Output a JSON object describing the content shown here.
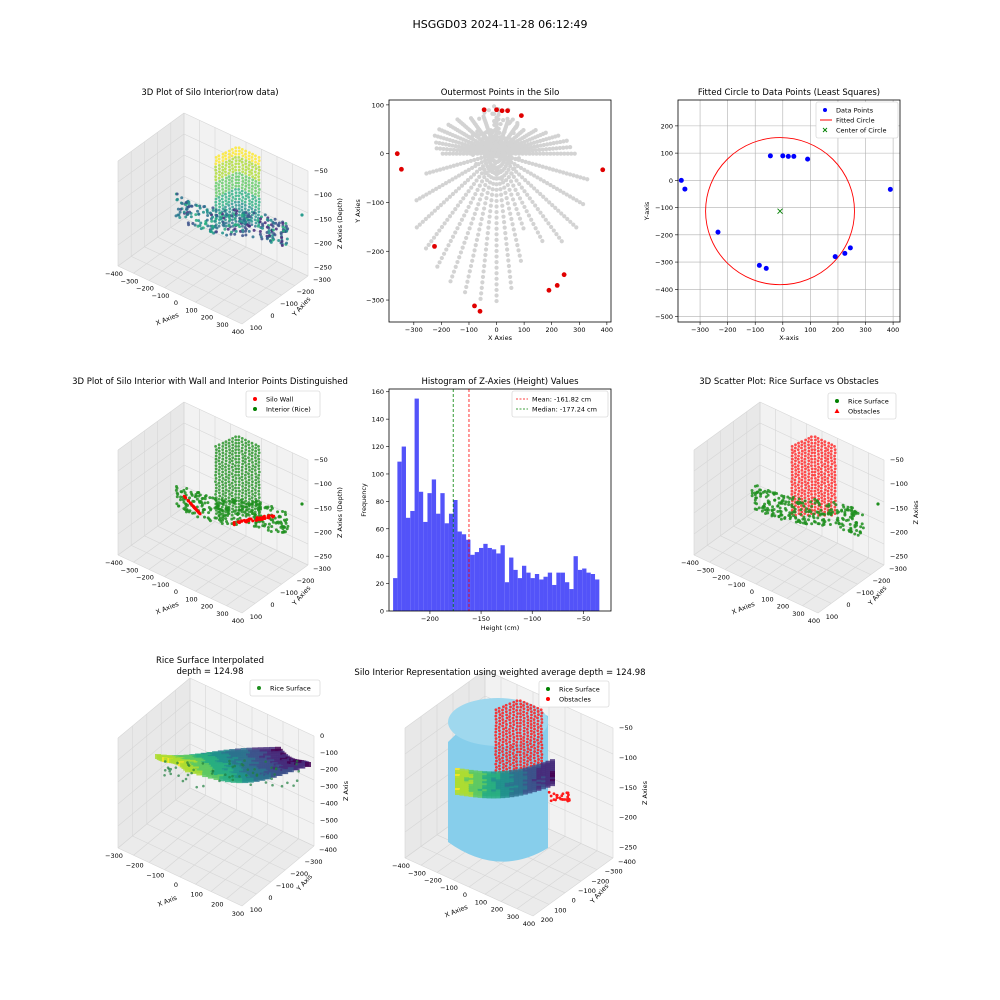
{
  "suptitle": "HSGGD03 2024-11-28 06:12:49",
  "chart_data": [
    {
      "id": "p1",
      "type": "scatter3d",
      "title": "3D Plot of Silo Interior(row data)",
      "xlabel": "X Axies",
      "ylabel": "Y Axies",
      "zlabel": "Z Axies (Depth)",
      "xticks": [
        "−400",
        "−300",
        "−200",
        "−100",
        "0",
        "100",
        "200",
        "300",
        "400"
      ],
      "yticks": [
        "−300",
        "−200",
        "−100",
        "0",
        "100"
      ],
      "zticks": [
        "−50",
        "−100",
        "−150",
        "−200",
        "−250"
      ],
      "colormap": "viridis",
      "legend": []
    },
    {
      "id": "p2",
      "type": "scatter",
      "title": "Outermost Points in the Silo",
      "xlabel": "X Axies",
      "ylabel": "Y Axies",
      "xticks": [
        -300,
        -200,
        -100,
        0,
        100,
        200,
        300,
        400
      ],
      "yticks": [
        100,
        0,
        -100,
        -200,
        -300
      ],
      "xlim": [
        -390,
        415
      ],
      "ylim": [
        -345,
        110
      ],
      "outermost_points": [
        {
          "x": -360,
          "y": 0
        },
        {
          "x": -345,
          "y": -32
        },
        {
          "x": -225,
          "y": -190
        },
        {
          "x": -80,
          "y": -312
        },
        {
          "x": -60,
          "y": -323
        },
        {
          "x": -45,
          "y": 90
        },
        {
          "x": 0,
          "y": 90
        },
        {
          "x": 20,
          "y": 88
        },
        {
          "x": 40,
          "y": 88
        },
        {
          "x": 90,
          "y": 78
        },
        {
          "x": 190,
          "y": -280
        },
        {
          "x": 220,
          "y": -270
        },
        {
          "x": 245,
          "y": -248
        },
        {
          "x": 385,
          "y": -33
        }
      ],
      "colors": {
        "background_points": "#d3d3d3",
        "outermost": "#e00000"
      }
    },
    {
      "id": "p3",
      "type": "scatter+circle",
      "title": "Fitted Circle to Data Points (Least Squares)",
      "xlabel": "X-axis",
      "ylabel": "Y-axis",
      "xticks": [
        -300,
        -200,
        -100,
        0,
        100,
        200,
        300,
        400
      ],
      "yticks": [
        200,
        100,
        0,
        -100,
        -200,
        -300,
        -400,
        -500
      ],
      "xlim": [
        -380,
        425
      ],
      "ylim": [
        -520,
        295
      ],
      "grid": true,
      "legend": [
        "Data Points",
        "Fitted Circle",
        "Center of Circle"
      ],
      "legend_position": "top-right",
      "data_points": [
        {
          "x": -368,
          "y": 0
        },
        {
          "x": -355,
          "y": -32
        },
        {
          "x": -235,
          "y": -190
        },
        {
          "x": -85,
          "y": -312
        },
        {
          "x": -60,
          "y": -323
        },
        {
          "x": -45,
          "y": 90
        },
        {
          "x": 0,
          "y": 90
        },
        {
          "x": 20,
          "y": 88
        },
        {
          "x": 40,
          "y": 88
        },
        {
          "x": 90,
          "y": 78
        },
        {
          "x": 190,
          "y": -280
        },
        {
          "x": 225,
          "y": -268
        },
        {
          "x": 245,
          "y": -248
        },
        {
          "x": 390,
          "y": -33
        }
      ],
      "circle": {
        "cx": -10,
        "cy": -113,
        "r": 270
      },
      "colors": {
        "points": "#0000ff",
        "circle": "#ff0000",
        "center": "#008000"
      }
    },
    {
      "id": "p4",
      "type": "scatter3d",
      "title": "3D Plot of Silo Interior with Wall and Interior Points Distinguished",
      "xlabel": "X Axies",
      "ylabel": "Y Axies",
      "zlabel": "Z Axies (Depth)",
      "xticks": [
        "−400",
        "−300",
        "−200",
        "−100",
        "0",
        "100",
        "200",
        "300",
        "400"
      ],
      "yticks": [
        "−300",
        "−200",
        "−100",
        "0",
        "100"
      ],
      "zticks": [
        "−50",
        "−100",
        "−150",
        "−200",
        "−250"
      ],
      "legend": [
        "Silo Wall",
        "Interior (Rice)"
      ],
      "colors": {
        "wall": "#ff0000",
        "rice": "#008000"
      }
    },
    {
      "id": "p5",
      "type": "histogram",
      "title": "Histogram of Z-Axies (Height) Values",
      "xlabel": "Height (cm)",
      "ylabel": "Frequency",
      "xticks": [
        -200,
        -150,
        -100,
        -50
      ],
      "yticks": [
        0,
        20,
        40,
        60,
        80,
        100,
        120,
        140,
        160
      ],
      "xlim": [
        -240,
        -23
      ],
      "ylim": [
        0,
        162
      ],
      "bin_start": -236.0,
      "bin_width": 4.2,
      "values": [
        24,
        109,
        120,
        68,
        73,
        155,
        87,
        65,
        86,
        96,
        71,
        86,
        64,
        71,
        81,
        58,
        56,
        52,
        41,
        43,
        46,
        49,
        46,
        45,
        42,
        48,
        21,
        39,
        30,
        24,
        33,
        28,
        24,
        27,
        23,
        25,
        28,
        19,
        28,
        28,
        21,
        16,
        40,
        30,
        31,
        28,
        27,
        23
      ],
      "mean": -161.82,
      "median": -177.24,
      "legend": [
        "Mean: -161.82 cm",
        "Median: -177.24 cm"
      ],
      "colors": {
        "bars": "#4444f8",
        "mean": "#ff0000",
        "median": "#008000"
      }
    },
    {
      "id": "p6",
      "type": "scatter3d",
      "title": "3D Scatter Plot: Rice Surface vs Obstacles",
      "xlabel": "X Axies",
      "ylabel": "Y Axies",
      "zlabel": "Z Axies",
      "xticks": [
        "−400",
        "−300",
        "−200",
        "−100",
        "0",
        "100",
        "200",
        "300",
        "400"
      ],
      "yticks": [
        "−300",
        "−200",
        "−100",
        "0",
        "100"
      ],
      "zticks": [
        "−50",
        "−100",
        "−150",
        "−200",
        "−250"
      ],
      "legend": [
        "Rice Surface",
        "Obstacles"
      ],
      "colors": {
        "rice": "#008000",
        "obstacles": "#ff0000"
      }
    },
    {
      "id": "p7",
      "type": "surface3d",
      "title": "Rice Surface Interpolated",
      "subtitle": "depth = 124.98",
      "xlabel": "X Axis",
      "ylabel": "Y Axis",
      "zlabel": "Z Axis",
      "xticks": [
        "−300",
        "−200",
        "−100",
        "0",
        "100",
        "200",
        "300"
      ],
      "yticks": [
        "−400",
        "−300",
        "−200",
        "−100",
        "0",
        "100"
      ],
      "zticks": [
        "0",
        "−100",
        "−200",
        "−300",
        "−400",
        "−500",
        "−600"
      ],
      "legend": [
        "Rice Surface"
      ]
    },
    {
      "id": "p8",
      "type": "surface3d",
      "title": "Silo Interior Representation using weighted average depth = 124.98",
      "xlabel": "X Axies",
      "ylabel": "Y Axies",
      "zlabel": "Z Axies",
      "xticks": [
        "−400",
        "−300",
        "−200",
        "−100",
        "0",
        "100",
        "200",
        "300",
        "400"
      ],
      "yticks": [
        "−400",
        "−300",
        "−200",
        "−100",
        "0",
        "100",
        "200"
      ],
      "zticks": [
        "−50",
        "−100",
        "−150",
        "−200",
        "−250"
      ],
      "legend": [
        "Rice Surface",
        "Obstacles"
      ],
      "colors": {
        "cylinder": "#87ceeb",
        "rice": "#008000",
        "obstacles": "#ff0000"
      }
    }
  ]
}
